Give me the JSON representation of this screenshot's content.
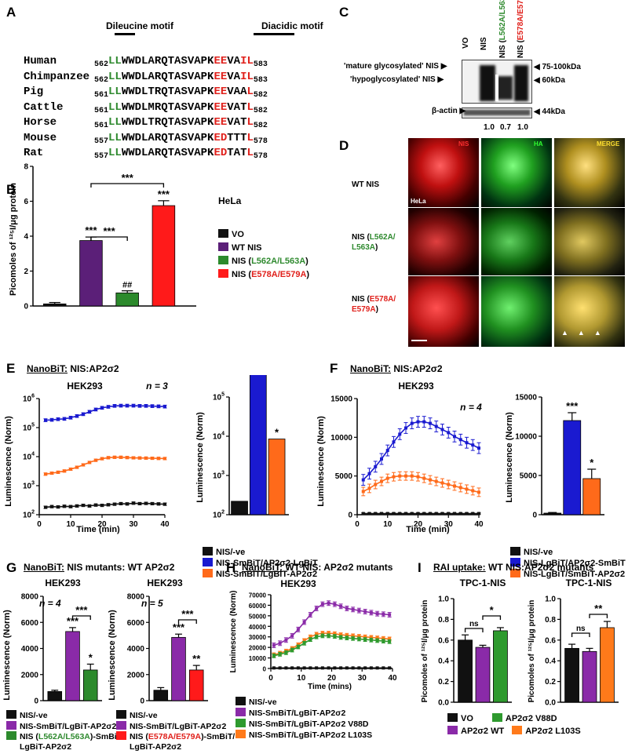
{
  "panelA": {
    "label": "A",
    "motif1": "Dileucine motif",
    "motif2": "Diacidic motif",
    "rows": [
      {
        "species": "Human",
        "start": "562",
        "ll": "LL",
        "mid": "WWDLARQTASVAPK",
        "ac": "EE",
        "m2": "VA",
        "end": "IL",
        "stop": "583"
      },
      {
        "species": "Chimpanzee",
        "start": "562",
        "ll": "LL",
        "mid": "WWDLARQTASVAPK",
        "ac": "EE",
        "m2": "VA",
        "end": "IL",
        "stop": "583"
      },
      {
        "species": "Pig",
        "start": "561",
        "ll": "LL",
        "mid": "WWDLTRQTASVAPK",
        "ac": "EE",
        "m2": "VAA",
        "end": "L",
        "stop": "582"
      },
      {
        "species": "Cattle",
        "start": "561",
        "ll": "LL",
        "mid": "WWDLMRQTASVAPK",
        "ac": "EE",
        "m2": "VAT",
        "end": "L",
        "stop": "582"
      },
      {
        "species": "Horse",
        "start": "561",
        "ll": "LL",
        "mid": "WWDLTRQTASVAPK",
        "ac": "EE",
        "m2": "VAT",
        "end": "L",
        "stop": "582"
      },
      {
        "species": "Mouse",
        "start": "557",
        "ll": "LL",
        "mid": "WWDLARQTASVAPK",
        "ac": "ED",
        "m2": "TTT",
        "end": "L",
        "stop": "578"
      },
      {
        "species": "Rat",
        "start": "557",
        "ll": "LL",
        "mid": "WWDLARQTASVAPK",
        "ac": "ED",
        "m2": "TAT",
        "end": "L",
        "stop": "578"
      }
    ]
  },
  "panelB": {
    "label": "B",
    "cell": "HeLa",
    "ylabel": "Picomoles of 125I/μg protein"
  },
  "panelC": {
    "label": "C",
    "lanes": [
      "VO",
      "NIS",
      "NIS (L562A/L563A)",
      "NIS (E578A/E579A)"
    ],
    "left1": "'mature glycosylated' NIS",
    "left2": "'hypoglycosylated' NIS",
    "left3": "β-actin",
    "right1": "75-100kDa",
    "right2": "60kDa",
    "right3": "44kDa",
    "quant": [
      "1.0",
      "0.7",
      "1.0"
    ]
  },
  "panelD": {
    "label": "D",
    "cols": [
      "NIS",
      "HA",
      "MERGE"
    ],
    "rows": [
      "WT NIS",
      "NIS (L562A/ L563A)",
      "NIS (E578A/ E579A)"
    ],
    "cell": "HeLa"
  },
  "panelE": {
    "label": "E",
    "title_prefix": "NanoBiT:",
    "title": "NIS:AP2σ2",
    "cell": "HEK293",
    "n": "n = 3",
    "xlabel": "Time (min)",
    "ylabel": "Luminescence (Norm)",
    "legend": [
      "NIS/-ve",
      "NIS-SmBiT/AP2σ2-LgBiT",
      "NIS-SmBiT/LgBiT-AP2σ2"
    ]
  },
  "panelF": {
    "label": "F",
    "title_prefix": "NanoBiT:",
    "title": "NIS:AP2σ2",
    "cell": "HEK293",
    "n": "n = 4",
    "xlabel": "Time  (min)",
    "ylabel": "Luminescence (Norm)",
    "legend": [
      "NIS/-ve",
      "NIS-LgBiT/AP2σ2-SmBiT",
      "NIS-LgBiT/SmBiT-AP2σ2"
    ]
  },
  "panelG": {
    "label": "G",
    "title_prefix": "NanoBiT:",
    "title": "NIS mutants: WT AP2σ2",
    "cell1": "HEK293",
    "cell2": "HEK293",
    "n1": "n = 4",
    "n2": "n = 5",
    "ylabel": "Luminescence (Norm)",
    "legend1": [
      "NIS/-ve",
      "NIS-SmBiT/LgBiT-AP2σ2",
      "NIS (L562A/L563A)-SmBiT/",
      "LgBiT-AP2σ2"
    ],
    "legend2": [
      "NIS/-ve",
      "NIS-SmBiT/LgBiT-AP2σ2",
      "NIS (E578A/E579A)-SmBiT/",
      "LgBiT-AP2σ2"
    ]
  },
  "panelH": {
    "label": "H",
    "title_prefix": "NanoBiT:",
    "title": "WT NIS: AP2σ2 mutants",
    "cell": "HEK293",
    "xlabel": "Time (mins)",
    "ylabel": "Luminescence (Norm)",
    "legend": [
      "NIS/-ve",
      "NIS-SmBiT/LgBiT-AP2σ2",
      "NIS-SmBiT/LgBiT-AP2σ2 V88D",
      "NIS-SmBiT/LgBiT-AP2σ2 L103S"
    ]
  },
  "panelI": {
    "label": "I",
    "title_prefix": "RAI uptake:",
    "title": "WT NIS:AP2σ2 mutants",
    "cell1": "TPC-1-NIS",
    "cell2": "TPC-1-NIS",
    "ylabel": "Picomoles of 125I/μg protein",
    "legend": [
      "VO",
      "AP2σ2 WT",
      "AP2σ2 V88D",
      "AP2σ2 L103S"
    ]
  },
  "colors": {
    "black": "#111111",
    "purple": "#5b1f78",
    "green": "#2c8a2c",
    "red": "#ff1a1a",
    "blue": "#1a1ad0",
    "orange": "#ff6a1a",
    "violet": "#8a2aa8",
    "green2": "#2e9a2e",
    "orange2": "#ff7a1a"
  },
  "chart_data": [
    {
      "panel": "B",
      "type": "bar",
      "categories": [
        "VO",
        "WT NIS",
        "NIS (L562A/L563A)",
        "NIS (E578A/E579A)"
      ],
      "values": [
        0.12,
        3.75,
        0.75,
        5.75
      ],
      "errors": [
        0.08,
        0.2,
        0.12,
        0.28
      ],
      "ylim": [
        0,
        8
      ],
      "yticks": [
        "0",
        "2",
        "4",
        "6",
        "8"
      ],
      "sig": [
        "",
        "***",
        "##",
        "***"
      ],
      "brackets": [
        "***",
        "***"
      ]
    },
    {
      "panel": "E-line",
      "type": "line",
      "xlim": [
        0,
        40
      ],
      "ylog": [
        2,
        6
      ],
      "xticks": [
        "0",
        "10",
        "20",
        "30",
        "40"
      ],
      "yticks": [
        "10^2",
        "10^3",
        "10^4",
        "10^5",
        "10^6"
      ],
      "x": [
        2,
        4,
        6,
        8,
        10,
        12,
        14,
        16,
        18,
        20,
        22,
        24,
        26,
        28,
        30,
        32,
        34,
        36,
        38,
        40
      ],
      "series": [
        {
          "values": [
            180000,
            185000,
            195000,
            200000,
            220000,
            250000,
            290000,
            350000,
            420000,
            480000,
            520000,
            560000,
            570000,
            570000,
            570000,
            560000,
            560000,
            550000,
            540000,
            530000
          ]
        },
        {
          "values": [
            2500,
            2700,
            2900,
            3200,
            3700,
            4300,
            5200,
            6300,
            7500,
            8500,
            9200,
            9500,
            9500,
            9300,
            9100,
            9000,
            8900,
            8800,
            8700,
            8600
          ]
        },
        {
          "values": [
            180,
            190,
            185,
            195,
            190,
            200,
            210,
            200,
            215,
            210,
            220,
            230,
            240,
            235,
            250,
            240,
            245,
            240,
            235,
            230
          ]
        }
      ]
    },
    {
      "panel": "E-bar",
      "type": "bar",
      "categories": [
        "NIS/-ve",
        "NIS-SmBiT/AP2σ2-LgBiT",
        "NIS-SmBiT/LgBiT-AP2σ2"
      ],
      "values": [
        220,
        450000,
        8500
      ],
      "ylog": [
        2,
        5
      ],
      "yticks": [
        "10^2",
        "10^3",
        "10^4",
        "10^5"
      ],
      "sig": [
        "",
        "***",
        "*"
      ]
    },
    {
      "panel": "F-line",
      "type": "line",
      "xlim": [
        0,
        40
      ],
      "ylim": [
        0,
        15000
      ],
      "xticks": [
        "0",
        "10",
        "20",
        "30",
        "40"
      ],
      "yticks": [
        "0",
        "5000",
        "10000",
        "15000"
      ],
      "x": [
        2,
        4,
        6,
        8,
        10,
        12,
        14,
        16,
        18,
        20,
        22,
        24,
        26,
        28,
        30,
        32,
        34,
        36,
        38,
        40
      ],
      "series": [
        {
          "values": [
            4500,
            5300,
            6200,
            7200,
            8300,
            9400,
            10400,
            11200,
            11800,
            12000,
            12000,
            11800,
            11400,
            11000,
            10600,
            10100,
            9700,
            9300,
            9000,
            8600
          ]
        },
        {
          "values": [
            3000,
            3400,
            3900,
            4300,
            4700,
            4900,
            5000,
            5000,
            5000,
            4900,
            4700,
            4500,
            4300,
            4100,
            3900,
            3700,
            3500,
            3300,
            3100,
            2900
          ]
        },
        {
          "values": [
            150,
            150,
            150,
            150,
            150,
            150,
            150,
            150,
            150,
            150,
            150,
            150,
            150,
            150,
            150,
            150,
            150,
            150,
            150,
            150
          ]
        }
      ]
    },
    {
      "panel": "F-bar",
      "type": "bar",
      "categories": [
        "NIS/-ve",
        "NIS-LgBiT/AP2σ2-SmBiT",
        "NIS-LgBiT/SmBiT-AP2σ2"
      ],
      "values": [
        200,
        12000,
        4600
      ],
      "errors": [
        80,
        1000,
        1200
      ],
      "ylim": [
        0,
        15000
      ],
      "yticks": [
        "0",
        "5000",
        "10000",
        "15000"
      ],
      "sig": [
        "",
        "***",
        "*"
      ]
    },
    {
      "panel": "G-left",
      "type": "bar",
      "categories": [
        "NIS/-ve",
        "NIS-SmBiT/LgBiT-AP2σ2",
        "NIS (L562A/L563A)-SmBiT/LgBiT-AP2σ2"
      ],
      "values": [
        700,
        5300,
        2350
      ],
      "errors": [
        100,
        300,
        450
      ],
      "ylim": [
        0,
        8000
      ],
      "yticks": [
        "0",
        "2000",
        "4000",
        "6000",
        "8000"
      ],
      "sig": [
        "",
        "***",
        "*"
      ],
      "brackets": [
        "***"
      ]
    },
    {
      "panel": "G-right",
      "type": "bar",
      "categories": [
        "NIS/-ve",
        "NIS-SmBiT/LgBiT-AP2σ2",
        "NIS (E578A/E579A)-SmBiT/LgBiT-AP2σ2"
      ],
      "values": [
        800,
        4850,
        2350
      ],
      "errors": [
        200,
        250,
        350
      ],
      "ylim": [
        0,
        8000
      ],
      "yticks": [
        "0",
        "2000",
        "4000",
        "6000",
        "8000"
      ],
      "sig": [
        "",
        "***",
        "**"
      ],
      "brackets": [
        "***"
      ]
    },
    {
      "panel": "H",
      "type": "line",
      "xlim": [
        0,
        40
      ],
      "ylim": [
        0,
        70000
      ],
      "xticks": [
        "0",
        "10",
        "20",
        "30",
        "40"
      ],
      "yticks": [
        "0",
        "10000",
        "20000",
        "30000",
        "40000",
        "50000",
        "60000",
        "70000"
      ],
      "x": [
        1,
        3,
        5,
        7,
        9,
        11,
        13,
        15,
        17,
        19,
        21,
        23,
        25,
        27,
        29,
        31,
        33,
        35,
        37,
        39
      ],
      "series": [
        {
          "values": [
            22000,
            24000,
            27000,
            31000,
            37000,
            44000,
            51000,
            57000,
            61000,
            62000,
            61000,
            59000,
            57000,
            56000,
            55000,
            54000,
            53000,
            52000,
            51500,
            51000
          ]
        },
        {
          "values": [
            13000,
            14500,
            16500,
            19000,
            22500,
            26500,
            30000,
            32500,
            33500,
            33500,
            33000,
            32000,
            31500,
            31000,
            30500,
            30000,
            29500,
            29000,
            28500,
            28000
          ]
        },
        {
          "values": [
            12000,
            13500,
            15000,
            17500,
            20500,
            24000,
            27500,
            30000,
            31000,
            31000,
            30500,
            29500,
            29000,
            28500,
            28000,
            27500,
            27000,
            26500,
            26000,
            25500
          ]
        },
        {
          "values": [
            500,
            500,
            500,
            500,
            500,
            500,
            500,
            500,
            500,
            500,
            500,
            500,
            500,
            500,
            500,
            500,
            500,
            500,
            500,
            500
          ]
        }
      ]
    },
    {
      "panel": "I-left",
      "type": "bar",
      "categories": [
        "VO",
        "AP2σ2 WT",
        "AP2σ2 V88D"
      ],
      "values": [
        0.6,
        0.53,
        0.69
      ],
      "errors": [
        0.05,
        0.02,
        0.03
      ],
      "ylim": [
        0,
        1.0
      ],
      "yticks": [
        "0.0",
        "0.2",
        "0.4",
        "0.6",
        "0.8",
        "1.0"
      ],
      "brackets": [
        "ns",
        "*"
      ]
    },
    {
      "panel": "I-right",
      "type": "bar",
      "categories": [
        "VO",
        "AP2σ2 WT",
        "AP2σ2 L103S"
      ],
      "values": [
        0.52,
        0.49,
        0.72
      ],
      "errors": [
        0.04,
        0.03,
        0.06
      ],
      "ylim": [
        0,
        1.0
      ],
      "yticks": [
        "0.0",
        "0.2",
        "0.4",
        "0.6",
        "0.8",
        "1.0"
      ],
      "brackets": [
        "ns",
        "**"
      ]
    }
  ]
}
